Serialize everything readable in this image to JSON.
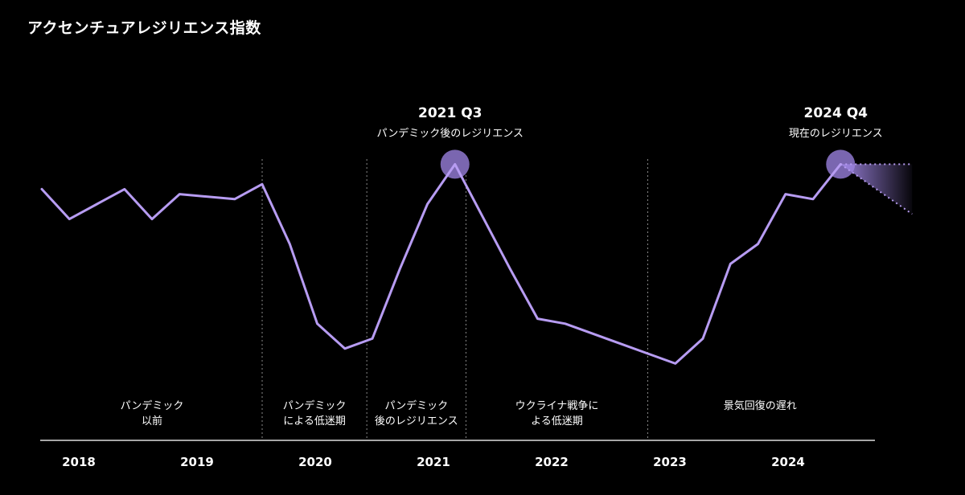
{
  "title": "アクセンチュアレジリエンス指数",
  "chart_data": {
    "type": "line",
    "title": "アクセンチュアレジリエンス指数",
    "xlabel": "",
    "ylabel": "",
    "x_ticks": [
      "2018",
      "2019",
      "2020",
      "2021",
      "2022",
      "2023",
      "2024"
    ],
    "series": [
      {
        "values": [
          [
            2018.0,
            63
          ],
          [
            2018.25,
            57
          ],
          [
            2018.5,
            60
          ],
          [
            2018.75,
            63
          ],
          [
            2019.0,
            57
          ],
          [
            2019.25,
            62
          ],
          [
            2019.75,
            61
          ],
          [
            2020.0,
            64
          ],
          [
            2020.25,
            52
          ],
          [
            2020.5,
            36
          ],
          [
            2020.75,
            31
          ],
          [
            2021.0,
            33
          ],
          [
            2021.25,
            47
          ],
          [
            2021.5,
            60
          ],
          [
            2021.75,
            68
          ],
          [
            2022.25,
            47
          ],
          [
            2022.5,
            37
          ],
          [
            2022.75,
            36
          ],
          [
            2023.0,
            34
          ],
          [
            2023.5,
            30
          ],
          [
            2023.75,
            28
          ],
          [
            2024.0,
            33
          ],
          [
            2024.25,
            48
          ],
          [
            2024.5,
            52
          ],
          [
            2024.75,
            62
          ],
          [
            2025.0,
            61
          ],
          [
            2025.25,
            68
          ]
        ],
        "color": "#b79cf2"
      }
    ],
    "period_dividers": [
      2020.0,
      2020.95,
      2021.85,
      2023.5
    ],
    "periods": [
      {
        "lines": [
          "パンデミック",
          "以前"
        ],
        "start": 2018.0,
        "end": 2020.0
      },
      {
        "lines": [
          "パンデミック",
          "による低迷期"
        ],
        "start": 2020.0,
        "end": 2020.95
      },
      {
        "lines": [
          "パンデミック",
          "後のレジリエンス"
        ],
        "start": 2020.95,
        "end": 2021.85
      },
      {
        "lines": [
          "ウクライナ戦争に",
          "よる低迷期"
        ],
        "start": 2021.85,
        "end": 2023.5
      },
      {
        "lines": [
          "景気回復の遅れ"
        ],
        "start": 2023.5,
        "end": 2025.6
      }
    ],
    "annotations": [
      {
        "x": 2021.75,
        "y": 68,
        "label": "2021 Q3",
        "sublabel": "パンデミック後のレジリエンス"
      },
      {
        "x": 2025.25,
        "y": 68,
        "label": "2024 Q4",
        "sublabel": "現在のレジリエンス"
      }
    ],
    "projection": {
      "from_x": 2025.25,
      "from_y": 68,
      "upper": [
        2025.9,
        68
      ],
      "lower": [
        2025.9,
        58
      ]
    },
    "marker_color": "#7a66b0",
    "line_color": "#b79cf2",
    "divider_color": "#888888",
    "axis_color": "#dddddd"
  }
}
